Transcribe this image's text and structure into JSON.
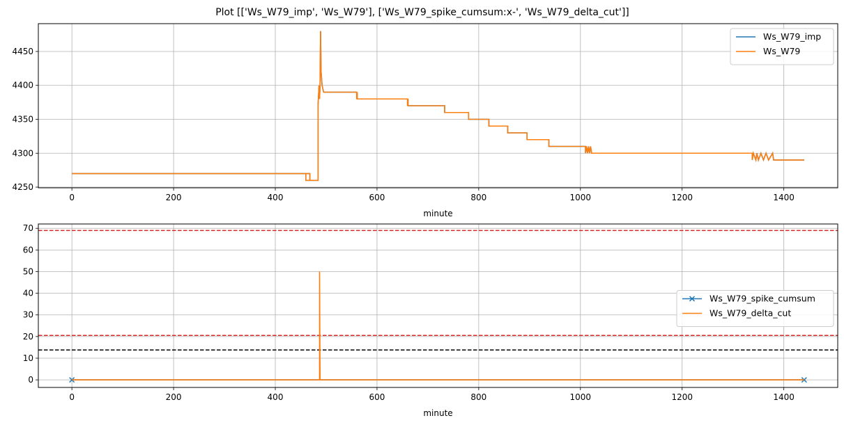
{
  "figure": {
    "title": "Plot [['Ws_W79_imp', 'Ws_W79'], ['Ws_W79_spike_cumsum:x-', 'Ws_W79_delta_cut']]"
  },
  "chart_data": [
    {
      "type": "line",
      "xlabel": "minute",
      "ylabel": "",
      "xlim": [
        -66,
        1506
      ],
      "ylim": [
        4249,
        4491
      ],
      "xticks": [
        0,
        200,
        400,
        600,
        800,
        1000,
        1200,
        1400
      ],
      "yticks": [
        4250,
        4300,
        4350,
        4400,
        4450
      ],
      "grid": true,
      "legend_position": "upper right",
      "series": [
        {
          "name": "Ws_W79_imp",
          "color": "#1f77b4",
          "style": "step",
          "points": [
            [
              0,
              4270
            ],
            [
              460,
              4270
            ],
            [
              460,
              4260
            ],
            [
              468,
              4260
            ],
            [
              468,
              4270
            ],
            [
              460,
              4270
            ],
            [
              460,
              4260
            ],
            [
              484,
              4260
            ],
            [
              484,
              4370
            ],
            [
              486,
              4400
            ],
            [
              487,
              4380
            ],
            [
              488,
              4400
            ],
            [
              489,
              4480
            ],
            [
              490,
              4420
            ],
            [
              492,
              4400
            ],
            [
              495,
              4390
            ],
            [
              560,
              4390
            ],
            [
              560,
              4380
            ],
            [
              561,
              4390
            ],
            [
              561,
              4380
            ],
            [
              660,
              4380
            ],
            [
              660,
              4370
            ],
            [
              661,
              4380
            ],
            [
              661,
              4370
            ],
            [
              733,
              4370
            ],
            [
              733,
              4360
            ],
            [
              780,
              4360
            ],
            [
              780,
              4350
            ],
            [
              820,
              4350
            ],
            [
              820,
              4340
            ],
            [
              857,
              4340
            ],
            [
              857,
              4330
            ],
            [
              895,
              4330
            ],
            [
              895,
              4320
            ],
            [
              938,
              4320
            ],
            [
              938,
              4310
            ],
            [
              1010,
              4310
            ],
            [
              1010,
              4300
            ],
            [
              1012,
              4310
            ],
            [
              1014,
              4300
            ],
            [
              1016,
              4310
            ],
            [
              1018,
              4300
            ],
            [
              1020,
              4310
            ],
            [
              1022,
              4300
            ],
            [
              1338,
              4300
            ],
            [
              1338,
              4290
            ],
            [
              1340,
              4300
            ],
            [
              1345,
              4290
            ],
            [
              1347,
              4300
            ],
            [
              1350,
              4290
            ],
            [
              1355,
              4300
            ],
            [
              1360,
              4290
            ],
            [
              1365,
              4300
            ],
            [
              1370,
              4290
            ],
            [
              1378,
              4300
            ],
            [
              1380,
              4290
            ],
            [
              1440,
              4290
            ]
          ]
        },
        {
          "name": "Ws_W79",
          "color": "#ff7f0e",
          "style": "step",
          "points": [
            [
              0,
              4270
            ],
            [
              460,
              4270
            ],
            [
              460,
              4260
            ],
            [
              468,
              4260
            ],
            [
              468,
              4270
            ],
            [
              460,
              4270
            ],
            [
              460,
              4260
            ],
            [
              484,
              4260
            ],
            [
              484,
              4370
            ],
            [
              486,
              4400
            ],
            [
              487,
              4380
            ],
            [
              488,
              4400
            ],
            [
              489,
              4480
            ],
            [
              490,
              4420
            ],
            [
              492,
              4400
            ],
            [
              495,
              4390
            ],
            [
              560,
              4390
            ],
            [
              560,
              4380
            ],
            [
              561,
              4390
            ],
            [
              561,
              4380
            ],
            [
              660,
              4380
            ],
            [
              660,
              4370
            ],
            [
              661,
              4380
            ],
            [
              661,
              4370
            ],
            [
              733,
              4370
            ],
            [
              733,
              4360
            ],
            [
              780,
              4360
            ],
            [
              780,
              4350
            ],
            [
              820,
              4350
            ],
            [
              820,
              4340
            ],
            [
              857,
              4340
            ],
            [
              857,
              4330
            ],
            [
              895,
              4330
            ],
            [
              895,
              4320
            ],
            [
              938,
              4320
            ],
            [
              938,
              4310
            ],
            [
              1010,
              4310
            ],
            [
              1010,
              4300
            ],
            [
              1012,
              4310
            ],
            [
              1014,
              4300
            ],
            [
              1016,
              4310
            ],
            [
              1018,
              4300
            ],
            [
              1020,
              4310
            ],
            [
              1022,
              4300
            ],
            [
              1338,
              4300
            ],
            [
              1338,
              4290
            ],
            [
              1340,
              4300
            ],
            [
              1345,
              4290
            ],
            [
              1347,
              4300
            ],
            [
              1350,
              4290
            ],
            [
              1355,
              4300
            ],
            [
              1360,
              4290
            ],
            [
              1365,
              4300
            ],
            [
              1370,
              4290
            ],
            [
              1378,
              4300
            ],
            [
              1380,
              4290
            ],
            [
              1440,
              4290
            ]
          ]
        }
      ]
    },
    {
      "type": "line",
      "xlabel": "minute",
      "ylabel": "",
      "xlim": [
        -66,
        1506
      ],
      "ylim": [
        -3.5,
        72
      ],
      "xticks": [
        0,
        200,
        400,
        600,
        800,
        1000,
        1200,
        1400
      ],
      "yticks": [
        0,
        10,
        20,
        30,
        40,
        50,
        60,
        70
      ],
      "grid": true,
      "legend_position": "center right",
      "series": [
        {
          "name": "Ws_W79_spike_cumsum",
          "color": "#1f77b4",
          "style": "line-with-x-markers",
          "points": [
            [
              0,
              0
            ],
            [
              1440,
              0
            ]
          ]
        },
        {
          "name": "Ws_W79_delta_cut",
          "color": "#ff7f0e",
          "style": "line",
          "points": [
            [
              0,
              0
            ],
            [
              487,
              0
            ],
            [
              487,
              50
            ],
            [
              488,
              0
            ],
            [
              1440,
              0
            ]
          ]
        }
      ],
      "hlines": [
        {
          "y": 69,
          "color": "#d62728",
          "style": "dashed"
        },
        {
          "y": 20.5,
          "color": "#d62728",
          "style": "dashed"
        },
        {
          "y": 13.8,
          "color": "#000000",
          "style": "dashed"
        }
      ]
    }
  ]
}
